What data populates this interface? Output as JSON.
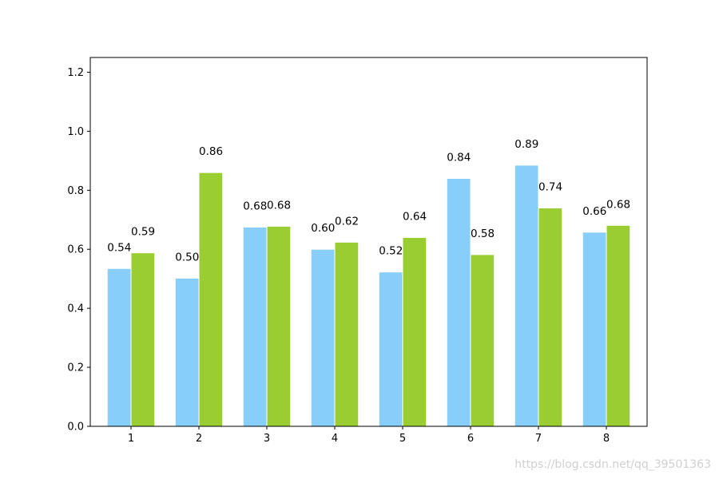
{
  "chart_data": {
    "type": "bar",
    "categories": [
      "1",
      "2",
      "3",
      "4",
      "5",
      "6",
      "7",
      "8"
    ],
    "series": [
      {
        "values": [
          0.535,
          0.502,
          0.675,
          0.6,
          0.523,
          0.84,
          0.885,
          0.658
        ],
        "color": "#87cefa"
      },
      {
        "values": [
          0.588,
          0.86,
          0.678,
          0.624,
          0.64,
          0.582,
          0.74,
          0.681
        ],
        "color": "#9acd32"
      }
    ],
    "data_labels": [
      [
        "0.54",
        "0.50",
        "0.68",
        "0.60",
        "0.52",
        "0.84",
        "0.89",
        "0.66"
      ],
      [
        "0.59",
        "0.86",
        "0.68",
        "0.62",
        "0.64",
        "0.58",
        "0.74",
        "0.68"
      ]
    ],
    "yticks": [
      "0.0",
      "0.2",
      "0.4",
      "0.6",
      "0.8",
      "1.0",
      "1.2"
    ],
    "ylim": [
      0,
      1.25
    ],
    "bar_edge_color": "#ffffff",
    "grid": false,
    "title": "",
    "xlabel": "",
    "ylabel": ""
  },
  "watermark": "https://blog.csdn.net/qq_39501363"
}
